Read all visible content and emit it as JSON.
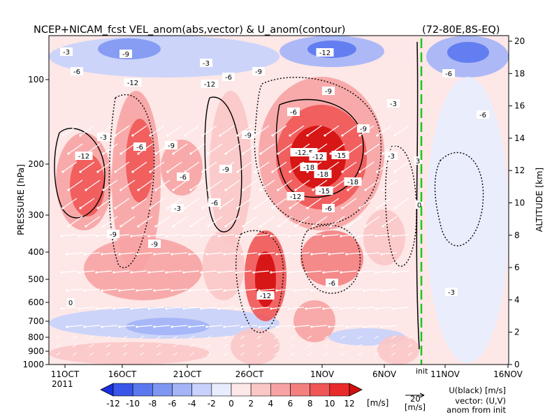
{
  "chart_data": {
    "type": "heatmap",
    "title": "NCEP+NICAM_fcst VEL_anom(abs,vector) & U_anom(contour)",
    "region": "(72-80E,8S-EQ)",
    "ylabel_left": "PRESSURE [hPa]",
    "ylabel_right": "ALTITUDE [km]",
    "pressure_ticks": [
      "100",
      "200",
      "300",
      "400",
      "500",
      "600",
      "700",
      "800",
      "900",
      "1000"
    ],
    "altitude_ticks": [
      "0",
      "2",
      "4",
      "6",
      "8",
      "10",
      "12",
      "14",
      "16",
      "18",
      "20"
    ],
    "x_ticks": [
      "11OCT",
      "16OCT",
      "21OCT",
      "26OCT",
      "1NOV",
      "6NOV",
      "11NOV",
      "16NOV"
    ],
    "year_label": "2011",
    "init_label": "init",
    "colorbar": {
      "ticks": [
        "-12",
        "-10",
        "-8",
        "-6",
        "-4",
        "-2",
        "0",
        "2",
        "4",
        "6",
        "8",
        "10",
        "12"
      ],
      "unit": "[m/s]",
      "colors": [
        "#1a2fe0",
        "#3a55e8",
        "#5b78ef",
        "#7f97f3",
        "#a3b4f7",
        "#c7d1fb",
        "#e8edfd",
        "#fde7e7",
        "#fbc6c6",
        "#f7a3a3",
        "#f37f7f",
        "#ef5656",
        "#e82a2a",
        "#d40e0e"
      ]
    },
    "vector_key": {
      "value": "20",
      "unit": "[m/s]"
    },
    "legend_notes": [
      "U(black) [m/s]",
      "vector: (U,V)",
      "anom from init"
    ],
    "contour_labels": [
      "-3",
      "-9",
      "-6",
      "-3",
      "-12",
      "-9",
      "-6",
      "-12",
      "-9",
      "-12",
      "-6",
      "-9",
      "-12.5",
      "-12",
      "-15",
      "-18",
      "-18",
      "-18",
      "-15",
      "-12",
      "-9",
      "-6",
      "-9",
      "-6",
      "-3",
      "-12",
      "-6",
      "-9",
      "0",
      "3",
      "-3",
      "-3",
      "-6",
      "-12",
      "-6",
      "-9",
      "-3",
      "-6",
      "0",
      "-3",
      "-6",
      "-9"
    ]
  }
}
